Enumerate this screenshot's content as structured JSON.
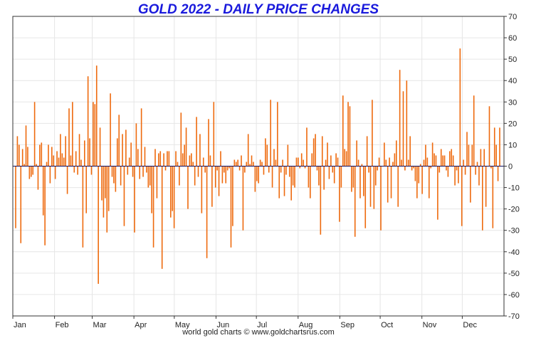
{
  "chart_data": {
    "type": "bar",
    "title": "GOLD 2022 - DAILY PRICE CHANGES",
    "footer": "world gold charts © www.goldchartsrus.com",
    "ylim": [
      -70,
      70
    ],
    "y_ticks": [
      70,
      60,
      50,
      40,
      30,
      20,
      10,
      0,
      -10,
      -20,
      -30,
      -40,
      -50,
      -60,
      -70
    ],
    "y_axis_position": "right",
    "x_ticks": [
      {
        "label": "Jan",
        "day": 0
      },
      {
        "label": "Feb",
        "day": 31
      },
      {
        "label": "Mar",
        "day": 59
      },
      {
        "label": "Apr",
        "day": 90
      },
      {
        "label": "May",
        "day": 120
      },
      {
        "label": "Jun",
        "day": 151
      },
      {
        "label": "Jul",
        "day": 181
      },
      {
        "label": "Aug",
        "day": 212
      },
      {
        "label": "Sep",
        "day": 243
      },
      {
        "label": "Oct",
        "day": 273
      },
      {
        "label": "Nov",
        "day": 304
      },
      {
        "label": "Dec",
        "day": 334
      }
    ],
    "x_range_days": [
      0,
      365
    ],
    "grid": true,
    "colors": {
      "bars": "#ee6a0e",
      "title": "#1a1adc",
      "zero_line": "#101060",
      "grid": "#e6e6e6"
    },
    "series": [
      {
        "values": [
          -29,
          14,
          10,
          -36,
          8,
          1,
          19,
          9,
          -6,
          -5,
          -4,
          30,
          1,
          -11,
          10,
          11,
          -23,
          -37,
          2,
          10,
          -8,
          9,
          5,
          -6,
          7,
          4,
          15,
          6,
          4,
          14,
          -13,
          27,
          5,
          30,
          -3,
          7,
          -4,
          15,
          3,
          -38,
          12,
          -22,
          42,
          13,
          -4,
          30,
          29,
          47,
          -55,
          18,
          -16,
          -24,
          -15,
          -31,
          -21,
          34,
          -5,
          -8,
          -12,
          13,
          24,
          -9,
          15,
          -28,
          17,
          -4,
          4,
          11,
          -5,
          -31,
          20,
          8,
          -6,
          27,
          -5,
          9,
          -3,
          -10,
          -9,
          -22,
          -38,
          8,
          -15,
          6,
          7,
          -48,
          6,
          -2,
          7,
          7,
          -24,
          -21,
          -29,
          7,
          2,
          -9,
          25,
          6,
          10,
          18,
          -20,
          5,
          6,
          2,
          -9,
          23,
          -5,
          15,
          -22,
          4,
          -3,
          -43,
          22,
          5,
          -19,
          30
        ]
      },
      {
        "values": [
          -10,
          -2,
          -14,
          7,
          -8,
          -3,
          -8,
          -2,
          -1,
          -38,
          -28,
          3,
          2,
          3,
          -2,
          5,
          -30,
          -3,
          2,
          15,
          1,
          5,
          2,
          -12,
          -7,
          -8,
          3,
          2,
          -4,
          13,
          10,
          -3,
          31,
          -10,
          8,
          3,
          30,
          -15,
          -3,
          3,
          -14,
          -4,
          10,
          -5,
          -16,
          -9,
          -10,
          4,
          4,
          -1,
          6,
          3,
          -1,
          18,
          -10,
          -15,
          6,
          13,
          15,
          -2,
          -9,
          -32,
          14,
          -11,
          3,
          11,
          -6,
          5,
          -3,
          -8,
          6,
          4,
          -26,
          -10,
          33,
          8,
          7,
          30,
          28,
          -12,
          -10,
          -33,
          12,
          3,
          -15,
          1,
          -14,
          -29,
          14,
          -3,
          -19,
          31,
          -20,
          -9,
          -2,
          4,
          -30,
          0,
          11,
          3,
          -17,
          4,
          -15,
          2,
          6,
          12,
          -19
        ]
      },
      {
        "values": [
          45,
          3,
          35,
          -2,
          40,
          3,
          14,
          -2,
          -1,
          -7,
          -15,
          -8,
          1,
          -13,
          3,
          10,
          4,
          -15,
          -1,
          11,
          6,
          5,
          -25,
          -3,
          8,
          5,
          5,
          -2,
          -5,
          7,
          8,
          5,
          -9,
          -2,
          -8,
          55,
          -28,
          3,
          -4,
          16,
          10,
          -17,
          10,
          33,
          -4,
          2,
          -9,
          8,
          -30,
          8,
          -19,
          0,
          28,
          -1,
          -29,
          18,
          10,
          -7,
          18
        ]
      }
    ]
  }
}
